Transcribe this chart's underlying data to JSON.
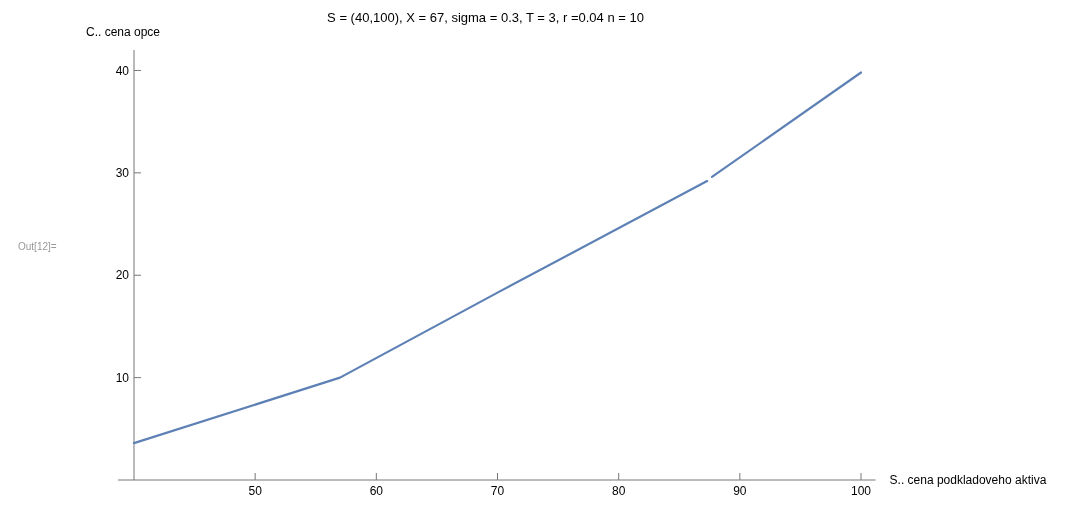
{
  "chart_data": {
    "type": "line",
    "title": "S = (40,100), X = 67, sigma = 0.3, T = 3, r =0.04 n = 10",
    "xlabel": "S.. cena podkladoveho aktiva",
    "ylabel": "C.. cena opce",
    "annotations": [
      "Out[12]="
    ],
    "x": [
      40,
      57,
      70,
      87.3,
      87.5,
      87.7,
      100
    ],
    "series": [
      {
        "color": "#5e81b5",
        "values": [
          3.6,
          10.0,
          18.3,
          29.2,
          null,
          29.6,
          39.8
        ]
      }
    ],
    "xlim": [
      40,
      101.2
    ],
    "ylim": [
      0,
      42
    ],
    "xticks": [
      50,
      60,
      70,
      80,
      90,
      100
    ],
    "yticks": [
      10,
      20,
      30,
      40
    ],
    "grid": false
  }
}
